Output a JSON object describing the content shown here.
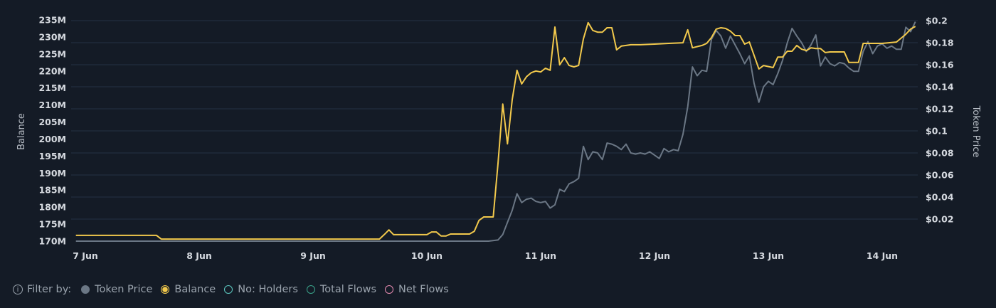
{
  "chart_data": {
    "type": "line",
    "xlabel": "",
    "ylabel_left": "Balance",
    "ylabel_right": "Token Price",
    "x_ticks": [
      "7 Jun",
      "8 Jun",
      "9 Jun",
      "10 Jun",
      "11 Jun",
      "12 Jun",
      "13 Jun",
      "14 Jun"
    ],
    "x_range": [
      "6 Jun 22:00",
      "14 Jun 07:00"
    ],
    "y_left_ticks": [
      "235M",
      "230M",
      "225M",
      "220M",
      "215M",
      "210M",
      "205M",
      "200M",
      "195M",
      "190M",
      "185M",
      "180M",
      "175M",
      "170M"
    ],
    "y_left_range": [
      170,
      235
    ],
    "y_left_unit": "M",
    "y_right_ticks": [
      "$0.2",
      "$0.18",
      "$0.16",
      "$0.14",
      "$0.12",
      "$0.1",
      "$0.08",
      "$0.06",
      "$0.04",
      "$0.02"
    ],
    "y_right_range": [
      0,
      0.2
    ],
    "grid": true,
    "legend_placement": "bottom-left",
    "series": [
      {
        "name": "Token Price",
        "axis": "right",
        "color": "#6b7785",
        "points": [
          [
            "6 Jun 22:00",
            0.0
          ],
          [
            "10 Jun 13:00",
            0.0
          ],
          [
            "10 Jun 15:00",
            0.001
          ],
          [
            "10 Jun 16:00",
            0.006
          ],
          [
            "10 Jun 17:00",
            0.017
          ],
          [
            "10 Jun 18:00",
            0.028
          ],
          [
            "10 Jun 19:00",
            0.043
          ],
          [
            "10 Jun 20:00",
            0.035
          ],
          [
            "10 Jun 21:00",
            0.038
          ],
          [
            "10 Jun 22:00",
            0.039
          ],
          [
            "10 Jun 23:00",
            0.036
          ],
          [
            "11 Jun 00:00",
            0.035
          ],
          [
            "11 Jun 01:00",
            0.036
          ],
          [
            "11 Jun 02:00",
            0.03
          ],
          [
            "11 Jun 03:00",
            0.033
          ],
          [
            "11 Jun 04:00",
            0.047
          ],
          [
            "11 Jun 05:00",
            0.045
          ],
          [
            "11 Jun 06:00",
            0.052
          ],
          [
            "11 Jun 07:00",
            0.054
          ],
          [
            "11 Jun 08:00",
            0.057
          ],
          [
            "11 Jun 09:00",
            0.086
          ],
          [
            "11 Jun 10:00",
            0.074
          ],
          [
            "11 Jun 11:00",
            0.081
          ],
          [
            "11 Jun 12:00",
            0.08
          ],
          [
            "11 Jun 13:00",
            0.074
          ],
          [
            "11 Jun 14:00",
            0.089
          ],
          [
            "11 Jun 15:00",
            0.088
          ],
          [
            "11 Jun 16:00",
            0.086
          ],
          [
            "11 Jun 17:00",
            0.083
          ],
          [
            "11 Jun 18:00",
            0.088
          ],
          [
            "11 Jun 19:00",
            0.08
          ],
          [
            "11 Jun 20:00",
            0.079
          ],
          [
            "11 Jun 21:00",
            0.08
          ],
          [
            "11 Jun 22:00",
            0.079
          ],
          [
            "11 Jun 23:00",
            0.081
          ],
          [
            "12 Jun 00:00",
            0.078
          ],
          [
            "12 Jun 01:00",
            0.075
          ],
          [
            "12 Jun 02:00",
            0.084
          ],
          [
            "12 Jun 03:00",
            0.081
          ],
          [
            "12 Jun 04:00",
            0.083
          ],
          [
            "12 Jun 05:00",
            0.082
          ],
          [
            "12 Jun 06:00",
            0.097
          ],
          [
            "12 Jun 07:00",
            0.122
          ],
          [
            "12 Jun 08:00",
            0.158
          ],
          [
            "12 Jun 09:00",
            0.15
          ],
          [
            "12 Jun 10:00",
            0.155
          ],
          [
            "12 Jun 11:00",
            0.154
          ],
          [
            "12 Jun 12:00",
            0.183
          ],
          [
            "12 Jun 13:00",
            0.191
          ],
          [
            "12 Jun 14:00",
            0.186
          ],
          [
            "12 Jun 15:00",
            0.175
          ],
          [
            "12 Jun 16:00",
            0.186
          ],
          [
            "12 Jun 17:00",
            0.178
          ],
          [
            "12 Jun 18:00",
            0.17
          ],
          [
            "12 Jun 19:00",
            0.161
          ],
          [
            "12 Jun 20:00",
            0.168
          ],
          [
            "12 Jun 21:00",
            0.143
          ],
          [
            "12 Jun 22:00",
            0.126
          ],
          [
            "12 Jun 23:00",
            0.14
          ],
          [
            "13 Jun 00:00",
            0.145
          ],
          [
            "13 Jun 01:00",
            0.142
          ],
          [
            "13 Jun 02:00",
            0.152
          ],
          [
            "13 Jun 03:00",
            0.164
          ],
          [
            "13 Jun 04:00",
            0.18
          ],
          [
            "13 Jun 05:00",
            0.193
          ],
          [
            "13 Jun 06:00",
            0.186
          ],
          [
            "13 Jun 07:00",
            0.18
          ],
          [
            "13 Jun 08:00",
            0.172
          ],
          [
            "13 Jun 09:00",
            0.178
          ],
          [
            "13 Jun 10:00",
            0.187
          ],
          [
            "13 Jun 11:00",
            0.159
          ],
          [
            "13 Jun 12:00",
            0.167
          ],
          [
            "13 Jun 13:00",
            0.161
          ],
          [
            "13 Jun 14:00",
            0.159
          ],
          [
            "13 Jun 15:00",
            0.162
          ],
          [
            "13 Jun 16:00",
            0.161
          ],
          [
            "13 Jun 17:00",
            0.157
          ],
          [
            "13 Jun 18:00",
            0.154
          ],
          [
            "13 Jun 19:00",
            0.154
          ],
          [
            "13 Jun 20:00",
            0.172
          ],
          [
            "13 Jun 21:00",
            0.181
          ],
          [
            "13 Jun 22:00",
            0.17
          ],
          [
            "13 Jun 23:00",
            0.177
          ],
          [
            "14 Jun 00:00",
            0.179
          ],
          [
            "14 Jun 01:00",
            0.175
          ],
          [
            "14 Jun 02:00",
            0.177
          ],
          [
            "14 Jun 03:00",
            0.174
          ],
          [
            "14 Jun 04:00",
            0.174
          ],
          [
            "14 Jun 05:00",
            0.194
          ],
          [
            "14 Jun 06:00",
            0.19
          ],
          [
            "14 Jun 07:00",
            0.199
          ]
        ]
      },
      {
        "name": "Balance",
        "axis": "left",
        "color": "#f2c94c",
        "points": [
          [
            "6 Jun 22:00",
            171.7
          ],
          [
            "7 Jun 15:00",
            171.7
          ],
          [
            "7 Jun 16:00",
            170.6
          ],
          [
            "9 Jun 14:00",
            170.6
          ],
          [
            "9 Jun 15:00",
            171.9
          ],
          [
            "9 Jun 16:00",
            173.3
          ],
          [
            "9 Jun 17:00",
            171.9
          ],
          [
            "10 Jun 00:00",
            171.9
          ],
          [
            "10 Jun 01:00",
            172.7
          ],
          [
            "10 Jun 02:00",
            172.7
          ],
          [
            "10 Jun 03:00",
            171.5
          ],
          [
            "10 Jun 04:00",
            171.5
          ],
          [
            "10 Jun 05:00",
            172.1
          ],
          [
            "10 Jun 09:00",
            172.1
          ],
          [
            "10 Jun 10:00",
            172.9
          ],
          [
            "10 Jun 11:00",
            176.1
          ],
          [
            "10 Jun 12:00",
            177.1
          ],
          [
            "10 Jun 14:00",
            177.1
          ],
          [
            "10 Jun 15:00",
            192.8
          ],
          [
            "10 Jun 16:00",
            210.3
          ],
          [
            "10 Jun 17:00",
            198.6
          ],
          [
            "10 Jun 18:00",
            211.6
          ],
          [
            "10 Jun 19:00",
            220.2
          ],
          [
            "10 Jun 20:00",
            216.2
          ],
          [
            "10 Jun 21:00",
            218.3
          ],
          [
            "10 Jun 22:00",
            219.5
          ],
          [
            "10 Jun 23:00",
            220.0
          ],
          [
            "11 Jun 00:00",
            219.7
          ],
          [
            "11 Jun 01:00",
            220.8
          ],
          [
            "11 Jun 02:00",
            220.2
          ],
          [
            "11 Jun 03:00",
            232.9
          ],
          [
            "11 Jun 04:00",
            221.8
          ],
          [
            "11 Jun 05:00",
            223.9
          ],
          [
            "11 Jun 06:00",
            221.6
          ],
          [
            "11 Jun 07:00",
            221.2
          ],
          [
            "11 Jun 08:00",
            221.6
          ],
          [
            "11 Jun 09:00",
            229.4
          ],
          [
            "11 Jun 10:00",
            234.2
          ],
          [
            "11 Jun 11:00",
            231.9
          ],
          [
            "11 Jun 12:00",
            231.4
          ],
          [
            "11 Jun 13:00",
            231.4
          ],
          [
            "11 Jun 14:00",
            232.7
          ],
          [
            "11 Jun 15:00",
            232.7
          ],
          [
            "11 Jun 16:00",
            226.2
          ],
          [
            "11 Jun 17:00",
            227.3
          ],
          [
            "11 Jun 18:00",
            227.5
          ],
          [
            "11 Jun 19:00",
            227.7
          ],
          [
            "11 Jun 21:00",
            227.7
          ],
          [
            "12 Jun 00:00",
            227.9
          ],
          [
            "12 Jun 03:00",
            228.1
          ],
          [
            "12 Jun 06:00",
            228.3
          ],
          [
            "12 Jun 07:00",
            232.1
          ],
          [
            "12 Jun 08:00",
            226.8
          ],
          [
            "12 Jun 10:00",
            227.5
          ],
          [
            "12 Jun 11:00",
            228.1
          ],
          [
            "12 Jun 12:00",
            229.8
          ],
          [
            "12 Jun 13:00",
            232.3
          ],
          [
            "12 Jun 14:00",
            232.7
          ],
          [
            "12 Jun 15:00",
            232.5
          ],
          [
            "12 Jun 16:00",
            231.7
          ],
          [
            "12 Jun 17:00",
            230.4
          ],
          [
            "12 Jun 18:00",
            230.4
          ],
          [
            "12 Jun 19:00",
            227.9
          ],
          [
            "12 Jun 20:00",
            228.5
          ],
          [
            "12 Jun 22:00",
            220.6
          ],
          [
            "12 Jun 23:00",
            221.6
          ],
          [
            "13 Jun 01:00",
            221.0
          ],
          [
            "13 Jun 02:00",
            224.1
          ],
          [
            "13 Jun 03:00",
            224.1
          ],
          [
            "13 Jun 04:00",
            225.8
          ],
          [
            "13 Jun 05:00",
            225.8
          ],
          [
            "13 Jun 06:00",
            227.5
          ],
          [
            "13 Jun 07:00",
            226.4
          ],
          [
            "13 Jun 08:00",
            226.0
          ],
          [
            "13 Jun 09:00",
            226.8
          ],
          [
            "13 Jun 10:00",
            226.6
          ],
          [
            "13 Jun 11:00",
            226.6
          ],
          [
            "13 Jun 12:00",
            225.4
          ],
          [
            "13 Jun 13:00",
            225.6
          ],
          [
            "13 Jun 16:00",
            225.6
          ],
          [
            "13 Jun 17:00",
            222.5
          ],
          [
            "13 Jun 19:00",
            222.5
          ],
          [
            "13 Jun 20:00",
            228.1
          ],
          [
            "14 Jun 00:00",
            228.1
          ],
          [
            "14 Jun 03:00",
            228.5
          ],
          [
            "14 Jun 05:00",
            230.8
          ],
          [
            "14 Jun 06:00",
            232.3
          ],
          [
            "14 Jun 07:00",
            233.1
          ]
        ]
      }
    ]
  },
  "legend": {
    "filter_label": "Filter by:",
    "info_icon": "info-circle-icon",
    "items": [
      {
        "label": "Token Price",
        "color": "#6b7785",
        "active": true,
        "style": "filled"
      },
      {
        "label": "Balance",
        "color": "#f2c94c",
        "active": true,
        "style": "ring-filled"
      },
      {
        "label": "No: Holders",
        "color": "#5cc8c0",
        "active": false,
        "style": "ring"
      },
      {
        "label": "Total Flows",
        "color": "#3aa38a",
        "active": false,
        "style": "ring"
      },
      {
        "label": "Net Flows",
        "color": "#e58ab0",
        "active": false,
        "style": "ring"
      }
    ]
  }
}
